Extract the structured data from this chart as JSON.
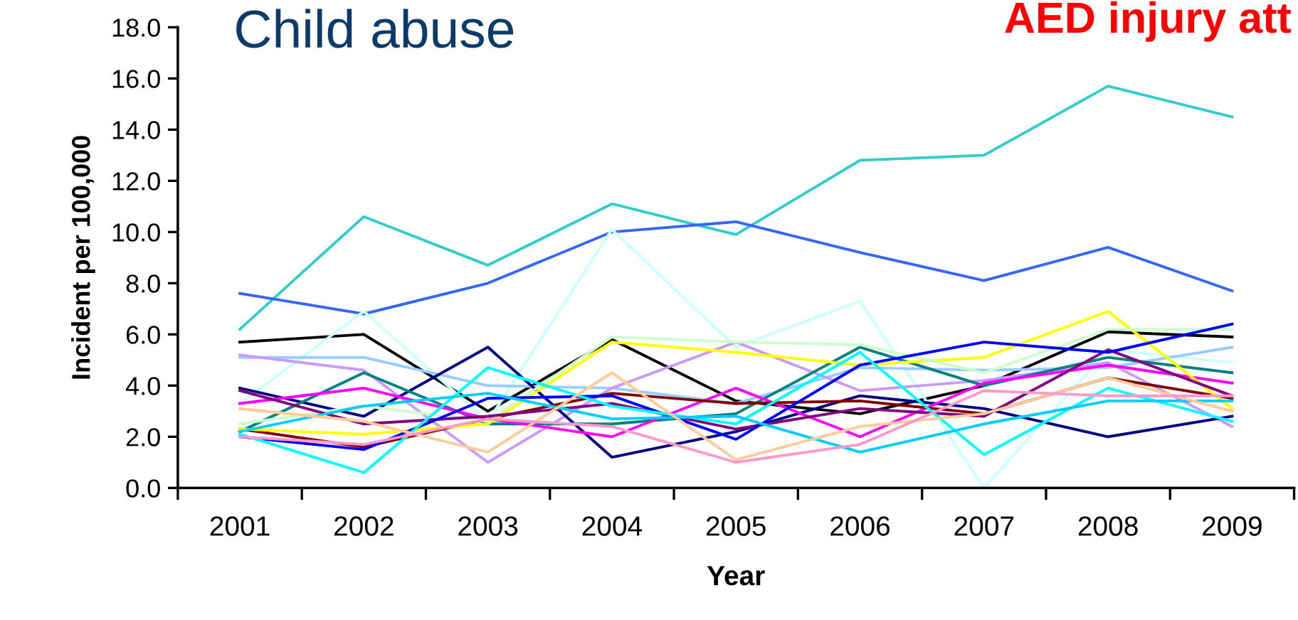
{
  "chart_data": {
    "type": "line",
    "title": "Child abuse",
    "annotations": [
      "AED injury att"
    ],
    "xlabel": "Year",
    "ylabel": "Incident per 100,000",
    "categories": [
      "2001",
      "2002",
      "2003",
      "2004",
      "2005",
      "2006",
      "2007",
      "2008",
      "2009"
    ],
    "ylim": [
      0,
      18
    ],
    "yticks": [
      {
        "value": 0,
        "label": "0.0"
      },
      {
        "value": 2,
        "label": "2.0"
      },
      {
        "value": 4,
        "label": "4.0"
      },
      {
        "value": 6,
        "label": "6.0"
      },
      {
        "value": 8,
        "label": "8.0"
      },
      {
        "value": 10,
        "label": "10.0"
      },
      {
        "value": 12,
        "label": "12.0"
      },
      {
        "value": 14,
        "label": "14.0"
      },
      {
        "value": 16,
        "label": "16.0"
      },
      {
        "value": 18,
        "label": "18.0"
      }
    ],
    "grid": false,
    "legend": false,
    "marker": "none",
    "line_style": "solid",
    "series": [
      {
        "color": "#33cccc",
        "values": [
          6.2,
          10.6,
          8.7,
          11.1,
          9.9,
          12.8,
          13.0,
          15.7,
          14.5
        ]
      },
      {
        "color": "#3366ff",
        "values": [
          7.6,
          6.8,
          8.0,
          10.0,
          10.4,
          9.2,
          8.1,
          9.4,
          7.7
        ]
      },
      {
        "color": "#000000",
        "values": [
          5.7,
          6.0,
          3.0,
          5.8,
          3.4,
          2.9,
          4.0,
          6.1,
          5.9
        ]
      },
      {
        "color": "#ccffff",
        "values": [
          3.3,
          6.9,
          2.6,
          10.1,
          5.5,
          7.3,
          0.0,
          5.4,
          4.9
        ]
      },
      {
        "color": "#99ccff",
        "values": [
          5.1,
          5.1,
          4.0,
          3.9,
          3.3,
          4.7,
          4.6,
          4.7,
          5.5
        ]
      },
      {
        "color": "#cc99ff",
        "values": [
          5.2,
          4.6,
          1.0,
          3.9,
          5.7,
          3.8,
          4.2,
          4.9,
          2.4
        ]
      },
      {
        "color": "#000080",
        "values": [
          3.9,
          2.8,
          5.5,
          1.2,
          2.2,
          3.6,
          3.1,
          2.0,
          2.8
        ]
      },
      {
        "color": "#008080",
        "values": [
          2.2,
          4.5,
          2.5,
          2.5,
          2.9,
          5.5,
          4.0,
          5.1,
          4.5
        ]
      },
      {
        "color": "#ff00ff",
        "values": [
          3.3,
          3.9,
          2.7,
          2.0,
          3.9,
          2.0,
          4.1,
          4.8,
          4.1
        ]
      },
      {
        "color": "#800000",
        "values": [
          2.3,
          1.6,
          2.7,
          3.7,
          3.3,
          3.4,
          2.9,
          4.3,
          3.5
        ]
      },
      {
        "color": "#ffff00",
        "values": [
          2.3,
          2.1,
          2.5,
          5.7,
          5.3,
          4.8,
          5.1,
          6.9,
          3.1
        ]
      },
      {
        "color": "#ccffcc",
        "values": [
          2.5,
          3.2,
          2.6,
          5.9,
          5.7,
          5.6,
          4.5,
          6.2,
          6.2
        ]
      },
      {
        "color": "#800080",
        "values": [
          3.8,
          2.5,
          2.8,
          3.3,
          2.3,
          3.1,
          2.8,
          5.4,
          3.6
        ]
      },
      {
        "color": "#0000ff",
        "values": [
          2.0,
          1.5,
          3.5,
          3.6,
          1.9,
          4.8,
          5.7,
          5.3,
          6.4
        ]
      },
      {
        "color": "#00ffff",
        "values": [
          2.1,
          0.6,
          4.7,
          3.2,
          2.5,
          5.3,
          1.3,
          3.9,
          2.6
        ]
      },
      {
        "color": "#00ccff",
        "values": [
          2.2,
          3.2,
          3.7,
          2.7,
          2.8,
          1.4,
          2.5,
          3.4,
          3.4
        ]
      },
      {
        "color": "#ffcc99",
        "values": [
          3.1,
          2.6,
          1.4,
          4.5,
          1.1,
          2.4,
          2.9,
          4.3,
          3.0
        ]
      },
      {
        "color": "#ff99cc",
        "values": [
          2.0,
          1.7,
          2.7,
          2.4,
          1.0,
          1.7,
          3.8,
          3.6,
          3.6
        ]
      }
    ]
  }
}
